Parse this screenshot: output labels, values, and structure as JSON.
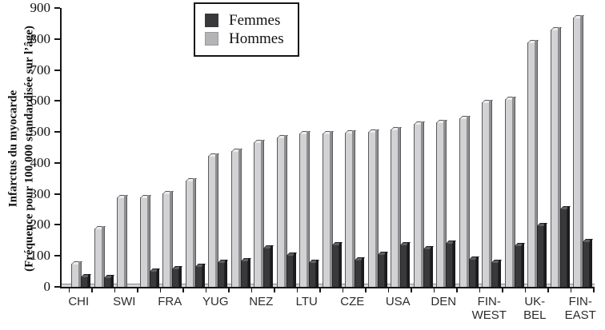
{
  "chart_data": {
    "type": "bar",
    "title": "",
    "ylabel_line1": "Infarctus du myocarde",
    "ylabel_line2": "(Fréquence pour 100 000 standardisée sur l’âge)",
    "xlabel": "",
    "ylim": [
      0,
      900
    ],
    "ytick_step": 100,
    "grid": "off",
    "legend_position": "top-center",
    "legend": [
      {
        "label": "Femmes",
        "color": "#39393b"
      },
      {
        "label": "Hommes",
        "color": "#b4b4b6"
      }
    ],
    "series": [
      {
        "name": "Hommes",
        "color": "#d2d2d4"
      },
      {
        "name": "Femmes",
        "color": "#39393b"
      }
    ],
    "populations": [
      {
        "label": "CHI",
        "hommes": 75,
        "femmes": 33
      },
      {
        "label": "",
        "hommes": 188,
        "femmes": 30
      },
      {
        "label": "SWI",
        "hommes": 289,
        "femmes": 0
      },
      {
        "label": "",
        "hommes": 289,
        "femmes": 52
      },
      {
        "label": "FRA",
        "hommes": 301,
        "femmes": 60
      },
      {
        "label": "",
        "hommes": 344,
        "femmes": 66
      },
      {
        "label": "YUG",
        "hommes": 424,
        "femmes": 80
      },
      {
        "label": "",
        "hommes": 438,
        "femmes": 86
      },
      {
        "label": "NEZ",
        "hommes": 466,
        "femmes": 126
      },
      {
        "label": "",
        "hommes": 483,
        "femmes": 102
      },
      {
        "label": "LTU",
        "hommes": 494,
        "femmes": 81
      },
      {
        "label": "",
        "hommes": 494,
        "femmes": 138
      },
      {
        "label": "CZE",
        "hommes": 497,
        "femmes": 87
      },
      {
        "label": "",
        "hommes": 500,
        "femmes": 105
      },
      {
        "label": "USA",
        "hommes": 509,
        "femmes": 136
      },
      {
        "label": "",
        "hommes": 525,
        "femmes": 123
      },
      {
        "label": "DEN",
        "hommes": 530,
        "femmes": 143
      },
      {
        "label": "",
        "hommes": 543,
        "femmes": 91
      },
      {
        "label": "FIN-WEST",
        "hommes": 597,
        "femmes": 80
      },
      {
        "label": "",
        "hommes": 607,
        "femmes": 134
      },
      {
        "label": "UK-BEL",
        "hommes": 790,
        "femmes": 198
      },
      {
        "label": "",
        "hommes": 830,
        "femmes": 254
      },
      {
        "label": "FIN-EAST",
        "hommes": 870,
        "femmes": 147
      }
    ]
  }
}
